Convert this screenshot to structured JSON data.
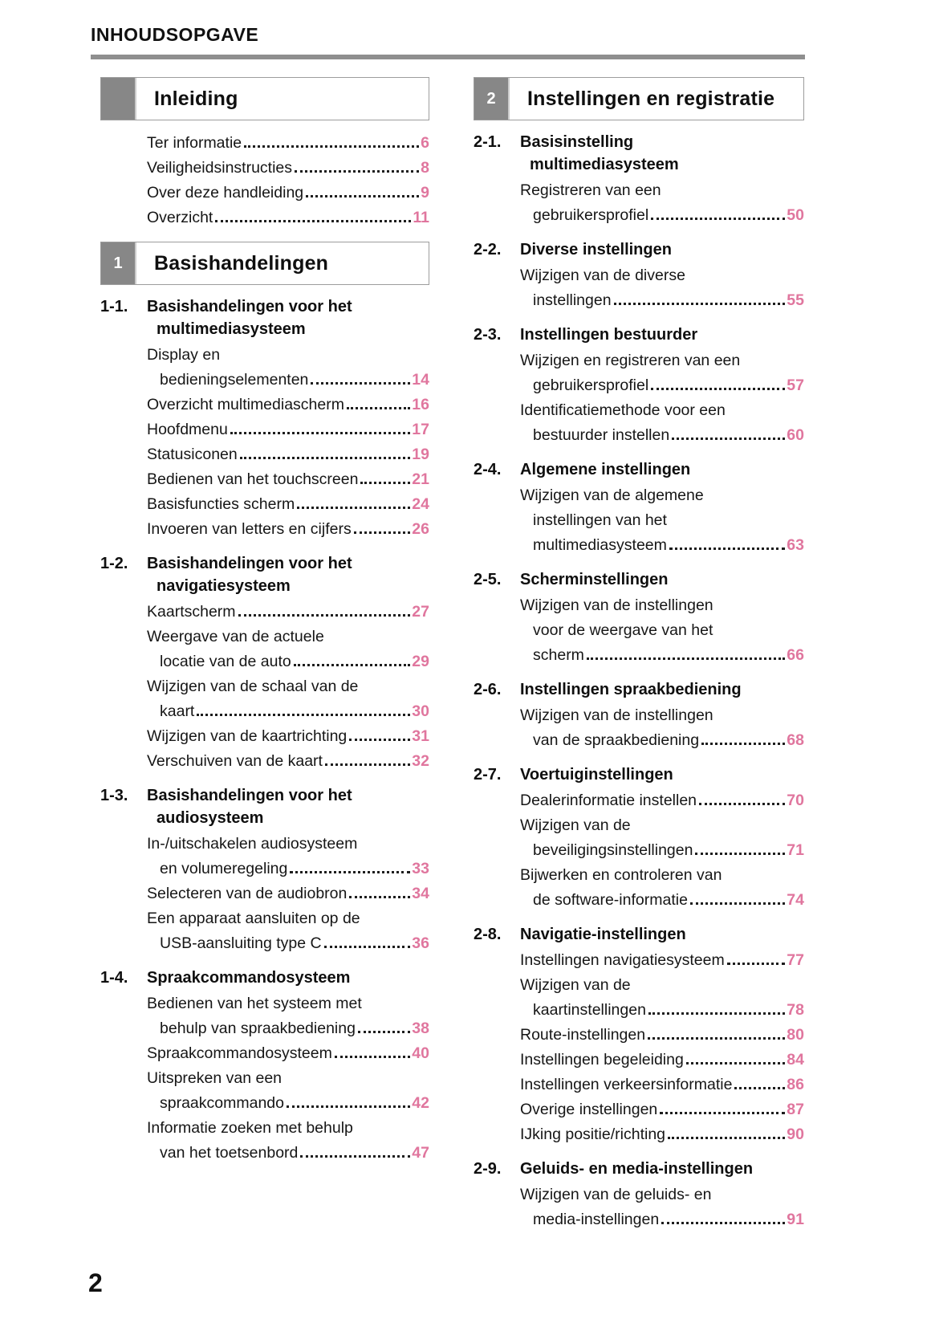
{
  "page": {
    "header_title": "INHOUDSOPGAVE",
    "page_number": "2"
  },
  "colors": {
    "accent_pink": "#e0769e",
    "tab_gray": "#878787",
    "rule_gray": "#8f8f8f",
    "box_border_gray": "#9d9d9d"
  },
  "columns": {
    "left": [
      {
        "type": "chapter",
        "num": "",
        "title": "Inleiding"
      },
      {
        "type": "entry",
        "lines": [
          "Ter informatie"
        ],
        "page": "6"
      },
      {
        "type": "entry",
        "lines": [
          "Veiligheidsinstructies"
        ],
        "page": "8"
      },
      {
        "type": "entry",
        "lines": [
          "Over deze handleiding"
        ],
        "page": "9"
      },
      {
        "type": "entry",
        "lines": [
          "Overzicht"
        ],
        "page": "11"
      },
      {
        "type": "chapter",
        "num": "1",
        "title": "Basishandelingen"
      },
      {
        "type": "heading",
        "num": "1-1.",
        "lines": [
          "Basishandelingen voor het",
          "multimediasysteem"
        ]
      },
      {
        "type": "entry",
        "lines": [
          "Display en",
          "bedieningselementen"
        ],
        "page": "14"
      },
      {
        "type": "entry",
        "lines": [
          "Overzicht multimediascherm"
        ],
        "page": "16"
      },
      {
        "type": "entry",
        "lines": [
          "Hoofdmenu"
        ],
        "page": "17"
      },
      {
        "type": "entry",
        "lines": [
          "Statusiconen"
        ],
        "page": "19"
      },
      {
        "type": "entry",
        "lines": [
          "Bedienen van het touchscreen"
        ],
        "page": "21"
      },
      {
        "type": "entry",
        "lines": [
          "Basisfuncties scherm"
        ],
        "page": "24"
      },
      {
        "type": "entry",
        "lines": [
          "Invoeren van letters en cijfers"
        ],
        "page": "26"
      },
      {
        "type": "heading",
        "num": "1-2.",
        "lines": [
          "Basishandelingen voor het",
          "navigatiesysteem"
        ]
      },
      {
        "type": "entry",
        "lines": [
          "Kaartscherm"
        ],
        "page": "27"
      },
      {
        "type": "entry",
        "lines": [
          "Weergave van de actuele",
          "locatie van de auto"
        ],
        "page": "29"
      },
      {
        "type": "entry",
        "lines": [
          "Wijzigen van de schaal van de",
          "kaart"
        ],
        "page": "30"
      },
      {
        "type": "entry",
        "lines": [
          "Wijzigen van de kaartrichting"
        ],
        "page": "31"
      },
      {
        "type": "entry",
        "lines": [
          "Verschuiven van de kaart"
        ],
        "page": "32"
      },
      {
        "type": "heading",
        "num": "1-3.",
        "lines": [
          "Basishandelingen voor het",
          "audiosysteem"
        ]
      },
      {
        "type": "entry",
        "lines": [
          "In-/uitschakelen audiosysteem",
          "en volumeregeling"
        ],
        "page": "33"
      },
      {
        "type": "entry",
        "lines": [
          "Selecteren van de audiobron"
        ],
        "page": "34"
      },
      {
        "type": "entry",
        "lines": [
          "Een apparaat aansluiten op de",
          "USB-aansluiting type C"
        ],
        "page": "36"
      },
      {
        "type": "heading",
        "num": "1-4.",
        "lines": [
          "Spraakcommandosysteem"
        ]
      },
      {
        "type": "entry",
        "lines": [
          "Bedienen van het systeem met",
          "behulp van spraakbediening"
        ],
        "page": "38"
      },
      {
        "type": "entry",
        "lines": [
          "Spraakcommandosysteem"
        ],
        "page": "40"
      },
      {
        "type": "entry",
        "lines": [
          "Uitspreken van een",
          "spraakcommando"
        ],
        "page": "42"
      },
      {
        "type": "entry",
        "lines": [
          "Informatie zoeken met behulp",
          "van het toetsenbord"
        ],
        "page": "47"
      }
    ],
    "right": [
      {
        "type": "chapter",
        "num": "2",
        "title": "Instellingen en registratie"
      },
      {
        "type": "heading",
        "num": "2-1.",
        "lines": [
          "Basisinstelling",
          "multimediasysteem"
        ]
      },
      {
        "type": "entry",
        "lines": [
          "Registreren van een",
          "gebruikersprofiel"
        ],
        "page": "50"
      },
      {
        "type": "heading",
        "num": "2-2.",
        "lines": [
          "Diverse instellingen"
        ]
      },
      {
        "type": "entry",
        "lines": [
          "Wijzigen van de diverse",
          "instellingen"
        ],
        "page": "55"
      },
      {
        "type": "heading",
        "num": "2-3.",
        "lines": [
          "Instellingen bestuurder"
        ]
      },
      {
        "type": "entry",
        "lines": [
          "Wijzigen en registreren van een",
          "gebruikersprofiel"
        ],
        "page": "57"
      },
      {
        "type": "entry",
        "lines": [
          "Identificatiemethode voor een",
          "bestuurder instellen"
        ],
        "page": "60"
      },
      {
        "type": "heading",
        "num": "2-4.",
        "lines": [
          "Algemene instellingen"
        ]
      },
      {
        "type": "entry",
        "lines": [
          "Wijzigen van de algemene",
          "instellingen van het",
          "multimediasysteem"
        ],
        "page": "63"
      },
      {
        "type": "heading",
        "num": "2-5.",
        "lines": [
          "Scherminstellingen"
        ]
      },
      {
        "type": "entry",
        "lines": [
          "Wijzigen van de instellingen",
          "voor de weergave van het",
          "scherm"
        ],
        "page": "66"
      },
      {
        "type": "heading",
        "num": "2-6.",
        "lines": [
          "Instellingen spraakbediening"
        ]
      },
      {
        "type": "entry",
        "lines": [
          "Wijzigen van de instellingen",
          "van de spraakbediening"
        ],
        "page": "68"
      },
      {
        "type": "heading",
        "num": "2-7.",
        "lines": [
          "Voertuiginstellingen"
        ]
      },
      {
        "type": "entry",
        "lines": [
          "Dealerinformatie instellen"
        ],
        "page": "70"
      },
      {
        "type": "entry",
        "lines": [
          "Wijzigen van de",
          "beveiligingsinstellingen"
        ],
        "page": "71"
      },
      {
        "type": "entry",
        "lines": [
          "Bijwerken en controleren van",
          "de software-informatie"
        ],
        "page": "74"
      },
      {
        "type": "heading",
        "num": "2-8.",
        "lines": [
          "Navigatie-instellingen"
        ]
      },
      {
        "type": "entry",
        "lines": [
          "Instellingen navigatiesysteem"
        ],
        "page": "77"
      },
      {
        "type": "entry",
        "lines": [
          "Wijzigen van de",
          "kaartinstellingen"
        ],
        "page": "78"
      },
      {
        "type": "entry",
        "lines": [
          "Route-instellingen"
        ],
        "page": "80"
      },
      {
        "type": "entry",
        "lines": [
          "Instellingen begeleiding"
        ],
        "page": "84"
      },
      {
        "type": "entry",
        "lines": [
          "Instellingen verkeersinformatie"
        ],
        "page": "86"
      },
      {
        "type": "entry",
        "lines": [
          "Overige instellingen"
        ],
        "page": "87"
      },
      {
        "type": "entry",
        "lines": [
          "IJking positie/richting"
        ],
        "page": "90"
      },
      {
        "type": "heading",
        "num": "2-9.",
        "lines": [
          "Geluids- en media-instellingen"
        ]
      },
      {
        "type": "entry",
        "lines": [
          "Wijzigen van de geluids- en",
          "media-instellingen"
        ],
        "page": "91"
      }
    ]
  }
}
